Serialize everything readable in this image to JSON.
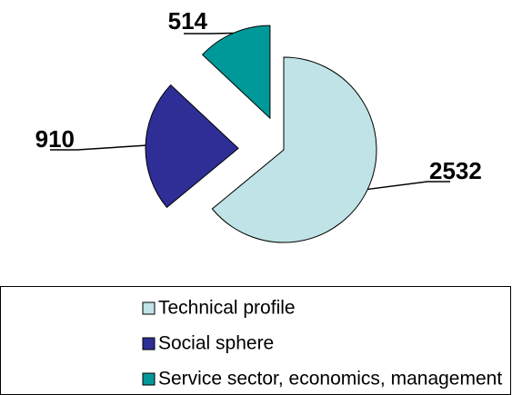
{
  "chart_data": {
    "type": "pie",
    "categories": [
      "Technical profile",
      "Social sphere",
      "Service sector, economics, management"
    ],
    "values": [
      2532,
      910,
      514
    ],
    "colors": [
      "#bfe3e6",
      "#2e2e96",
      "#009999"
    ],
    "legend": "bottom"
  }
}
